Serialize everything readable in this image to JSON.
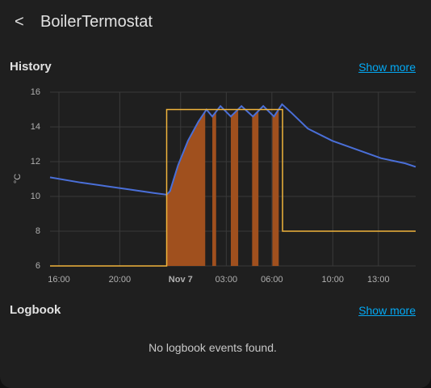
{
  "header": {
    "back": "<",
    "title": "BoilerTermostat"
  },
  "history": {
    "title": "History",
    "link": "Show more"
  },
  "chart_data": {
    "type": "line",
    "ylabel": "°C",
    "xlim": [
      "Nov 6 15:25",
      "Nov 7 15:27"
    ],
    "xticks": [
      {
        "value": "Nov 6 16:00",
        "label": "16:00"
      },
      {
        "value": "Nov 6 20:00",
        "label": "20:00"
      },
      {
        "value": "Nov 7 00:00",
        "label": "Nov 7"
      },
      {
        "value": "Nov 7 03:00",
        "label": "03:00"
      },
      {
        "value": "Nov 7 06:00",
        "label": "06:00"
      },
      {
        "value": "Nov 7 10:00",
        "label": "10:00"
      },
      {
        "value": "Nov 7 13:00",
        "label": "13:00"
      }
    ],
    "ylim": [
      6,
      16
    ],
    "yticks": [
      6,
      8,
      10,
      12,
      14,
      16
    ],
    "grid": true,
    "series": [
      {
        "color": "#4a6fd8",
        "x": [
          "Nov 6 15:25",
          "Nov 6 17:25",
          "Nov 6 19:02",
          "Nov 6 20:38",
          "Nov 6 22:14",
          "Nov 6 23:05",
          "Nov 6 23:18",
          "Nov 6 23:50",
          "Nov 7 00:29",
          "Nov 7 01:10",
          "Nov 7 01:42",
          "Nov 7 02:05",
          "Nov 7 02:37",
          "Nov 7 03:18",
          "Nov 7 04:00",
          "Nov 7 04:45",
          "Nov 7 05:26",
          "Nov 7 06:08",
          "Nov 7 06:40",
          "Nov 7 07:18",
          "Nov 7 08:22",
          "Nov 7 09:58",
          "Nov 7 11:34",
          "Nov 7 13:10",
          "Nov 7 14:46",
          "Nov 7 15:27"
        ],
        "values": [
          11.1,
          10.8,
          10.6,
          10.4,
          10.2,
          10.1,
          10.3,
          11.8,
          13.2,
          14.3,
          15.0,
          14.6,
          15.2,
          14.6,
          15.2,
          14.6,
          15.2,
          14.6,
          15.3,
          14.8,
          13.9,
          13.2,
          12.7,
          12.2,
          11.9,
          11.7
        ]
      },
      {
        "color": "#f0b43c",
        "step": true,
        "x": [
          "Nov 6 15:25",
          "Nov 6 23:05",
          "Nov 7 06:42",
          "Nov 7 15:27"
        ],
        "values": [
          6,
          15,
          8,
          8
        ]
      }
    ],
    "heating": {
      "color": "#a0501e",
      "periods": [
        [
          "Nov 6 23:05",
          "Nov 7 01:37"
        ],
        [
          "Nov 7 02:05",
          "Nov 7 02:20"
        ],
        [
          "Nov 7 03:18",
          "Nov 7 03:47"
        ],
        [
          "Nov 7 04:42",
          "Nov 7 05:07"
        ],
        [
          "Nov 7 06:02",
          "Nov 7 06:27"
        ]
      ]
    }
  },
  "logbook": {
    "title": "Logbook",
    "link": "Show more",
    "empty": "No logbook events found."
  }
}
